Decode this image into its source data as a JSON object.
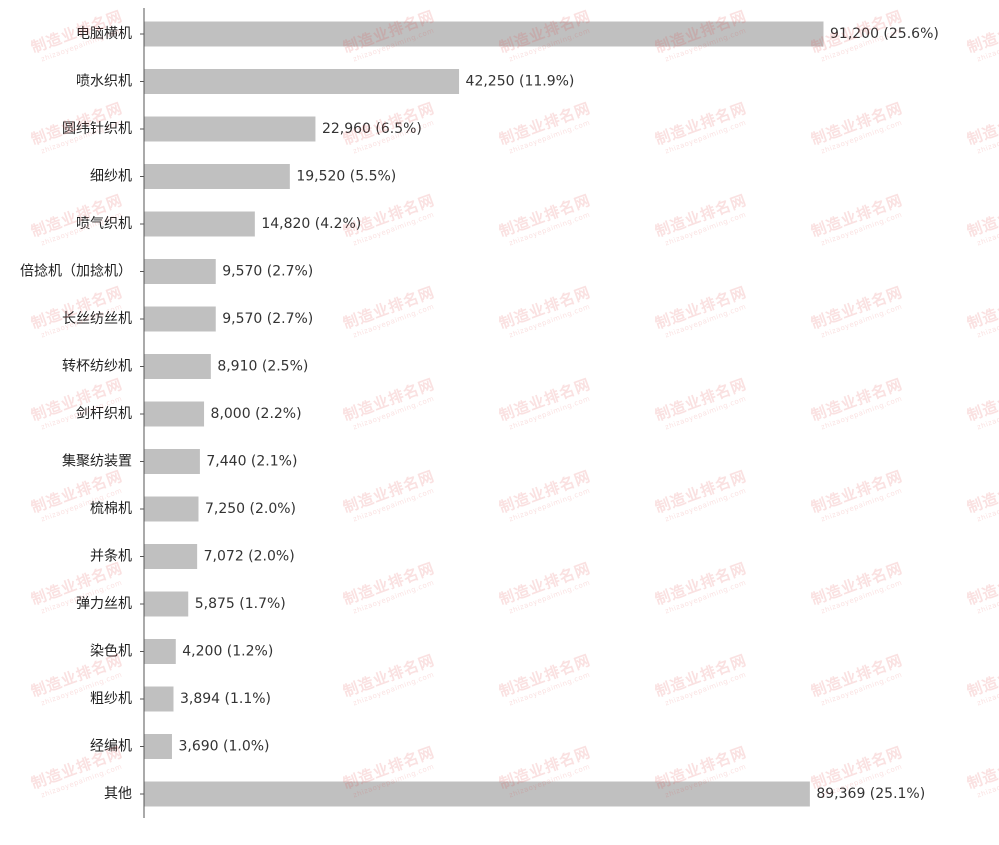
{
  "watermark": {
    "text": "制造业排名网",
    "subtext": "zhizaoyepaiming.com"
  },
  "chart_data": {
    "type": "bar",
    "orientation": "horizontal",
    "categories": [
      "电脑横机",
      "喷水织机",
      "圆纬针织机",
      "细纱机",
      "喷气织机",
      "倍捻机（加捻机）",
      "长丝纺丝机",
      "转杯纺纱机",
      "剑杆织机",
      "集聚纺装置",
      "梳棉机",
      "并条机",
      "弹力丝机",
      "染色机",
      "粗纱机",
      "经编机",
      "其他"
    ],
    "values": [
      91200,
      42250,
      22960,
      19520,
      14820,
      9570,
      9570,
      8910,
      8000,
      7440,
      7250,
      7072,
      5875,
      4200,
      3894,
      3690,
      89369
    ],
    "data_labels": [
      "91,200 (25.6%)",
      "42,250 (11.9%)",
      "22,960 (6.5%)",
      "19,520 (5.5%)",
      "14,820 (4.2%)",
      "9,570 (2.7%)",
      "9,570 (2.7%)",
      "8,910 (2.5%)",
      "8,000 (2.2%)",
      "7,440 (2.1%)",
      "7,250 (2.0%)",
      "7,072 (2.0%)",
      "5,875 (1.7%)",
      "4,200 (1.2%)",
      "3,894 (1.1%)",
      "3,690 (1.0%)",
      "89,369 (25.1%)"
    ],
    "title": "",
    "xlabel": "",
    "ylabel": "",
    "xlim": [
      0,
      91200
    ],
    "grid": false,
    "legend": "none",
    "bar_color": "#c0c0c0",
    "axis_color": "#555555"
  }
}
